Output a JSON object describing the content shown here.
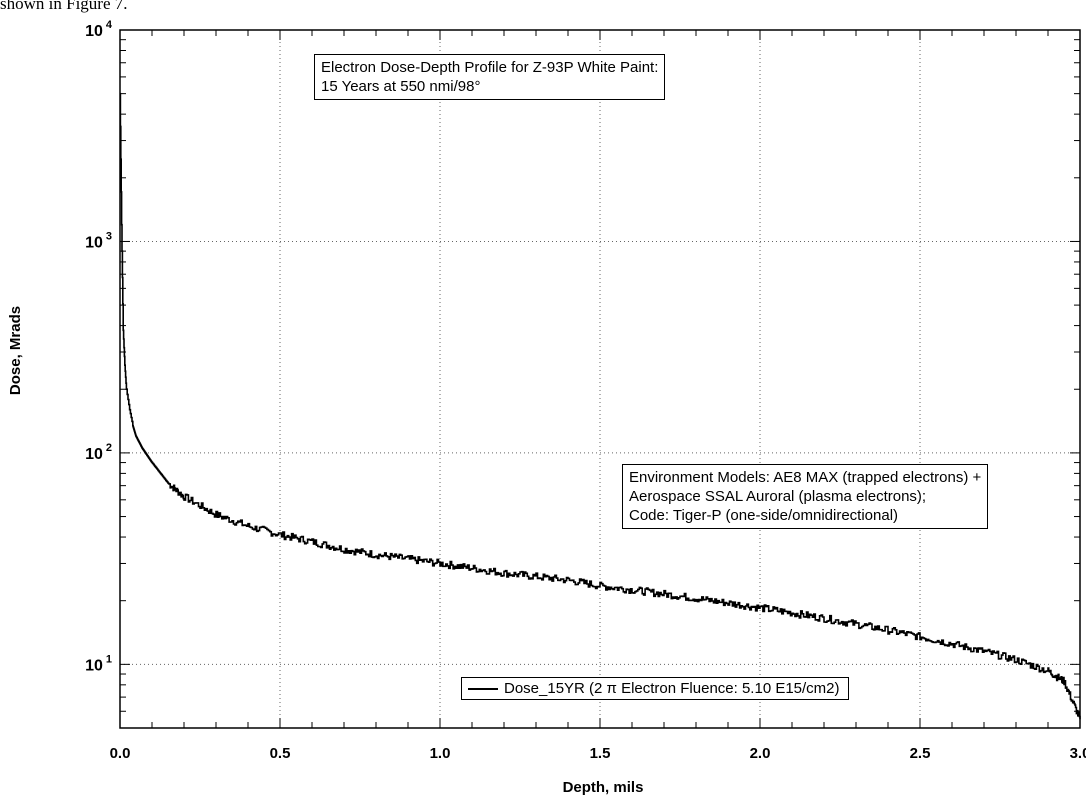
{
  "page": {
    "top_caption": "shown in Figure 7."
  },
  "chart_data": {
    "type": "line",
    "title": "Electron Dose-Depth Profile for Z-93P  White Paint:",
    "subtitle": "15 Years at 550 nmi/98°",
    "xlabel": "Depth, mils",
    "ylabel": "Dose, Mrads",
    "xlim": [
      0.0,
      3.0
    ],
    "ylim": [
      5,
      10000
    ],
    "yscale": "log",
    "grid": true,
    "x_ticks": [
      "0.0",
      "0.5",
      "1.0",
      "1.5",
      "2.0",
      "2.5",
      "3.0"
    ],
    "y_ticks": [
      {
        "base": "10",
        "exp": "1"
      },
      {
        "base": "10",
        "exp": "2"
      },
      {
        "base": "10",
        "exp": "3"
      },
      {
        "base": "10",
        "exp": "4"
      }
    ],
    "annotations": [
      "Environment Models:  AE8 MAX (trapped electrons) +",
      "Aerospace SSAL Auroral (plasma electrons);",
      "Code:  Tiger-P (one-side/omnidirectional)"
    ],
    "legend": {
      "position": "bottom-right",
      "label": "Dose_15YR (2  π Electron Fluence:  5.10 E15/cm2)"
    },
    "series": [
      {
        "name": "Dose_15YR (2  π Electron Fluence:  5.10 E15/cm2)",
        "color": "#000000",
        "x": [
          0.0,
          0.005,
          0.01,
          0.015,
          0.02,
          0.03,
          0.04,
          0.05,
          0.07,
          0.1,
          0.15,
          0.2,
          0.3,
          0.4,
          0.5,
          0.6,
          0.7,
          0.8,
          0.9,
          1.0,
          1.1,
          1.2,
          1.3,
          1.4,
          1.5,
          1.6,
          1.7,
          1.8,
          1.9,
          2.0,
          2.1,
          2.2,
          2.3,
          2.4,
          2.5,
          2.6,
          2.7,
          2.8,
          2.9,
          2.95,
          3.0
        ],
        "y": [
          5000,
          1200,
          380,
          260,
          200,
          160,
          135,
          120,
          105,
          90,
          72,
          62,
          51,
          45,
          41,
          38,
          35,
          33,
          31.5,
          30,
          28.5,
          27,
          26,
          25,
          23.5,
          22.5,
          21.5,
          20.5,
          19.5,
          18.5,
          17.5,
          16.5,
          15.5,
          14.5,
          13.5,
          12.5,
          11.5,
          10.5,
          9.3,
          8.3,
          5.5
        ]
      }
    ]
  }
}
